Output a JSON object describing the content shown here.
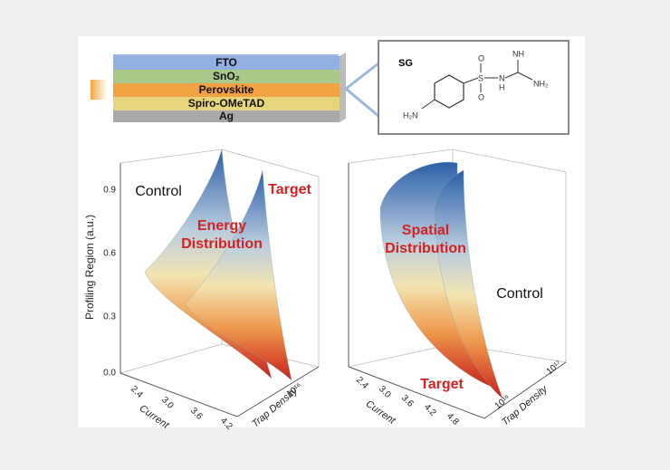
{
  "stack": {
    "layers": [
      "FTO",
      "SnO₂",
      "Perovskite",
      "Spiro-OMeTAD",
      "Ag"
    ]
  },
  "molecule": {
    "name": "SG",
    "atoms": [
      "H₂N",
      "S",
      "O",
      "O",
      "N",
      "H",
      "NH",
      "NH₂"
    ]
  },
  "left_plot": {
    "y_label": "Profiling Region (a.u.)",
    "y_ticks": [
      "0.9",
      "0.6",
      "0.3",
      "0.0"
    ],
    "x_ticks": [
      "2.4",
      "3.0",
      "3.6",
      "4.2"
    ],
    "x_label": "Current",
    "z_label": "Trap Density",
    "z_ticks": [
      "10¹⁶"
    ],
    "labels": [
      "Control",
      "Target"
    ],
    "title": [
      "Energy",
      "Distribution"
    ]
  },
  "right_plot": {
    "x_ticks": [
      "2.4",
      "3.0",
      "3.6",
      "4.2",
      "4.8"
    ],
    "x_label": "Current",
    "z_label": "Trap Density",
    "z_ticks": [
      "10¹⁶",
      "10¹⁷"
    ],
    "labels": [
      "Control",
      "Target"
    ],
    "title": [
      "Spatial",
      "Distribution"
    ]
  }
}
